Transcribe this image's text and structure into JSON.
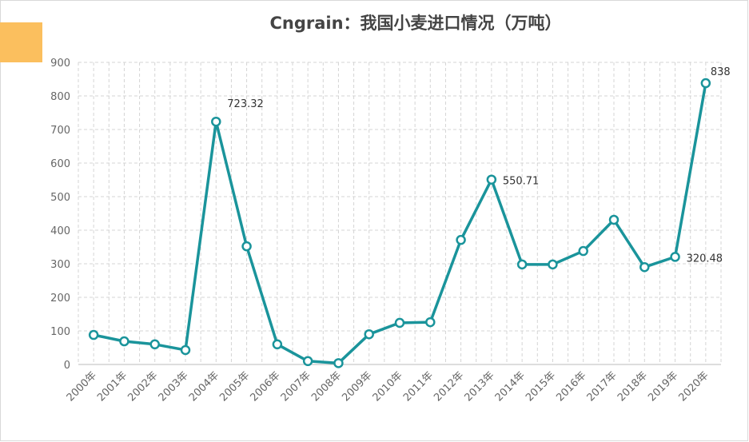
{
  "chart_data": {
    "type": "line",
    "title": "Cngrain：我国小麦进口情况（万吨）",
    "categories": [
      "2000年",
      "2001年",
      "2002年",
      "2003年",
      "2004年",
      "2005年",
      "2006年",
      "2007年",
      "2008年",
      "2009年",
      "2010年",
      "2011年",
      "2012年",
      "2013年",
      "2014年",
      "2015年",
      "2016年",
      "2017年",
      "2018年",
      "2019年",
      "2020年"
    ],
    "values": [
      88,
      69,
      60,
      43,
      723.32,
      352,
      60,
      10,
      4,
      90,
      124,
      126,
      371,
      550.71,
      298,
      298,
      338,
      431,
      290,
      320.48,
      838
    ],
    "value_labels": [
      null,
      null,
      null,
      null,
      "723.32",
      null,
      null,
      null,
      null,
      null,
      null,
      null,
      null,
      "550.71",
      null,
      null,
      null,
      null,
      null,
      "320.48",
      "838"
    ],
    "color": "#1a949b",
    "ylim": [
      0,
      900
    ],
    "yticks": [
      0,
      100,
      200,
      300,
      400,
      500,
      600,
      700,
      800,
      900
    ],
    "grid": true
  }
}
